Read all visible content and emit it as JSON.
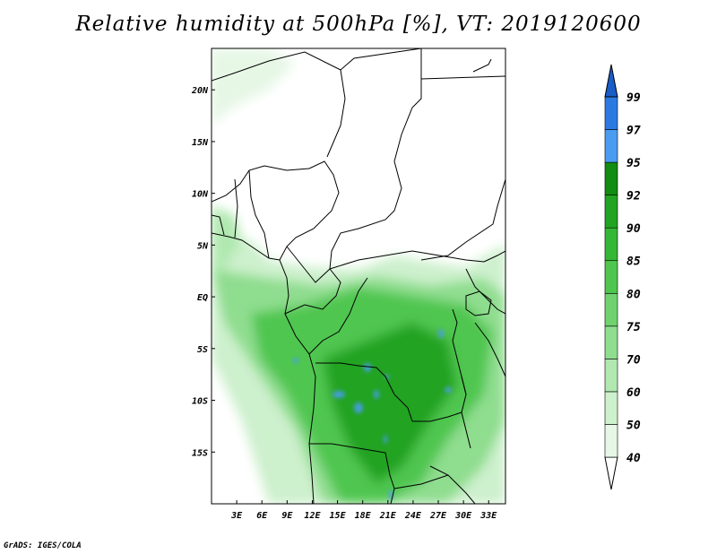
{
  "title": "Relative humidity at 500hPa [%], VT: 2019120600",
  "credit": "GrADS: IGES/COLA",
  "map": {
    "lon_range": [
      0,
      35
    ],
    "lat_range": [
      -20,
      24
    ],
    "lon_ticks": [
      "3E",
      "6E",
      "9E",
      "12E",
      "15E",
      "18E",
      "21E",
      "24E",
      "27E",
      "30E",
      "33E"
    ],
    "lon_tick_values": [
      3,
      6,
      9,
      12,
      15,
      18,
      21,
      24,
      27,
      30,
      33
    ],
    "lat_ticks": [
      "20N",
      "15N",
      "10N",
      "5N",
      "EQ",
      "5S",
      "10S",
      "15S"
    ],
    "lat_tick_values": [
      20,
      15,
      10,
      5,
      0,
      -5,
      -10,
      -15
    ]
  },
  "colorbar": {
    "levels": [
      "40",
      "50",
      "60",
      "70",
      "75",
      "80",
      "85",
      "90",
      "92",
      "95",
      "97",
      "99"
    ],
    "colors": [
      "#ffffff",
      "#e6f7e6",
      "#cdf0cd",
      "#b0e8b0",
      "#8fdd8f",
      "#6fd26f",
      "#4fc64f",
      "#34b734",
      "#22a322",
      "#128c12",
      "#4a9cf0",
      "#2a7ae2",
      "#1a5cc8"
    ],
    "color_names": [
      "below-40",
      "40-50",
      "50-60",
      "60-70",
      "70-75",
      "75-80",
      "80-85",
      "85-90",
      "90-92",
      "92-95",
      "95-97",
      "97-99",
      "above-99"
    ]
  }
}
